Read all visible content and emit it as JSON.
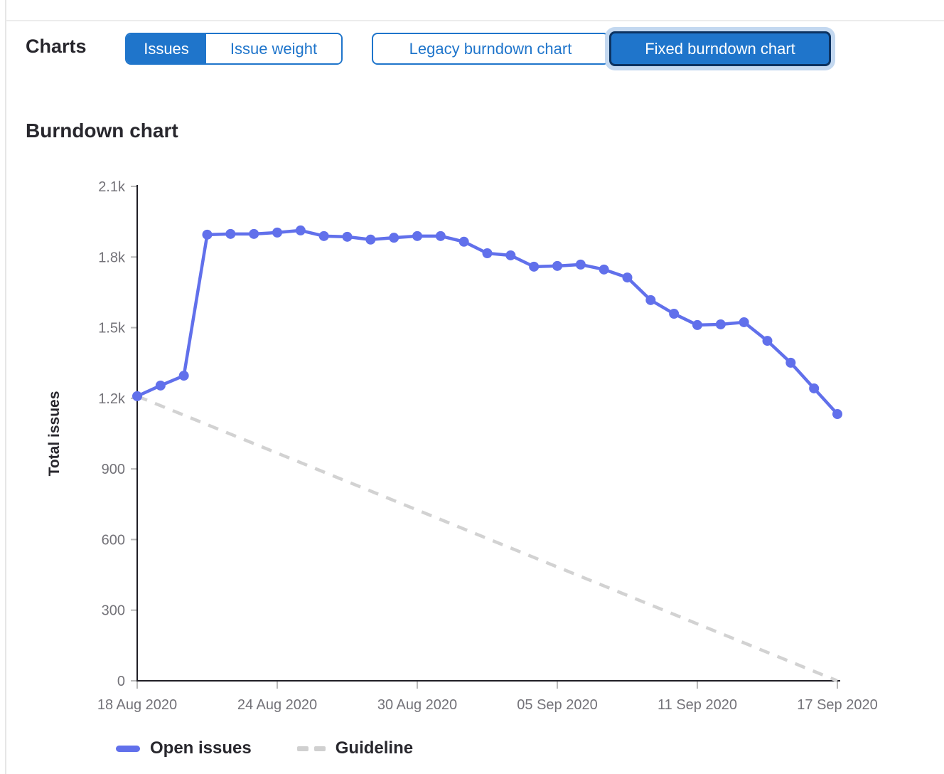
{
  "colors": {
    "accent_blue": "#1f75cb",
    "accent_blue_dark_border": "#0c3361",
    "focus_halo": "#c3d8f0",
    "open_issues_line": "#6170eb",
    "guideline_gray": "#d2d2d2",
    "axis_line": "#1f1e25",
    "tick_label_gray": "#737278",
    "text_dark": "#28272d"
  },
  "header": {
    "charts_label": "Charts",
    "metric_toggle": {
      "options": [
        {
          "label": "Issues",
          "selected": true
        },
        {
          "label": "Issue weight",
          "selected": false
        }
      ]
    },
    "chart_type_toggle": {
      "options": [
        {
          "label": "Legacy burndown chart",
          "selected": false
        },
        {
          "label": "Fixed burndown chart",
          "selected": true,
          "focused": true
        }
      ]
    }
  },
  "section_title": "Burndown chart",
  "chart_data": {
    "type": "line",
    "title": "Burndown chart",
    "xlabel": "",
    "ylabel": "Total issues",
    "ylim": [
      0,
      2100
    ],
    "y_ticks": [
      0,
      300,
      600,
      900,
      1200,
      1500,
      1800,
      2100
    ],
    "y_tick_labels": [
      "0",
      "300",
      "600",
      "900",
      "1.2k",
      "1.5k",
      "1.8k",
      "2.1k"
    ],
    "x": [
      "18 Aug 2020",
      "19 Aug 2020",
      "20 Aug 2020",
      "21 Aug 2020",
      "22 Aug 2020",
      "23 Aug 2020",
      "24 Aug 2020",
      "25 Aug 2020",
      "26 Aug 2020",
      "27 Aug 2020",
      "28 Aug 2020",
      "29 Aug 2020",
      "30 Aug 2020",
      "31 Aug 2020",
      "01 Sep 2020",
      "02 Sep 2020",
      "03 Sep 2020",
      "04 Sep 2020",
      "05 Sep 2020",
      "06 Sep 2020",
      "07 Sep 2020",
      "08 Sep 2020",
      "09 Sep 2020",
      "10 Sep 2020",
      "11 Sep 2020",
      "12 Sep 2020",
      "13 Sep 2020",
      "14 Sep 2020",
      "15 Sep 2020",
      "16 Sep 2020",
      "17 Sep 2020"
    ],
    "x_tick_indices": [
      0,
      6,
      12,
      18,
      24,
      30
    ],
    "x_tick_labels": [
      "18 Aug 2020",
      "24 Aug 2020",
      "30 Aug 2020",
      "05 Sep 2020",
      "11 Sep 2020",
      "17 Sep 2020"
    ],
    "grid": false,
    "legend_position": "bottom",
    "series": [
      {
        "name": "Open issues",
        "style": "solid",
        "color": "#6170eb",
        "markers": true,
        "values": [
          1209,
          1254,
          1296,
          1895,
          1898,
          1898,
          1904,
          1913,
          1889,
          1886,
          1874,
          1882,
          1889,
          1889,
          1865,
          1816,
          1807,
          1759,
          1762,
          1768,
          1747,
          1713,
          1617,
          1559,
          1511,
          1514,
          1523,
          1444,
          1351,
          1242,
          1133
        ]
      },
      {
        "name": "Guideline",
        "style": "dashed",
        "color": "#d2d2d2",
        "markers": false,
        "x": [
          "18 Aug 2020",
          "17 Sep 2020"
        ],
        "values": [
          1209,
          0
        ]
      }
    ]
  },
  "legend": {
    "items": [
      {
        "label": "Open issues",
        "swatch": "solid"
      },
      {
        "label": "Guideline",
        "swatch": "dashed"
      }
    ]
  }
}
